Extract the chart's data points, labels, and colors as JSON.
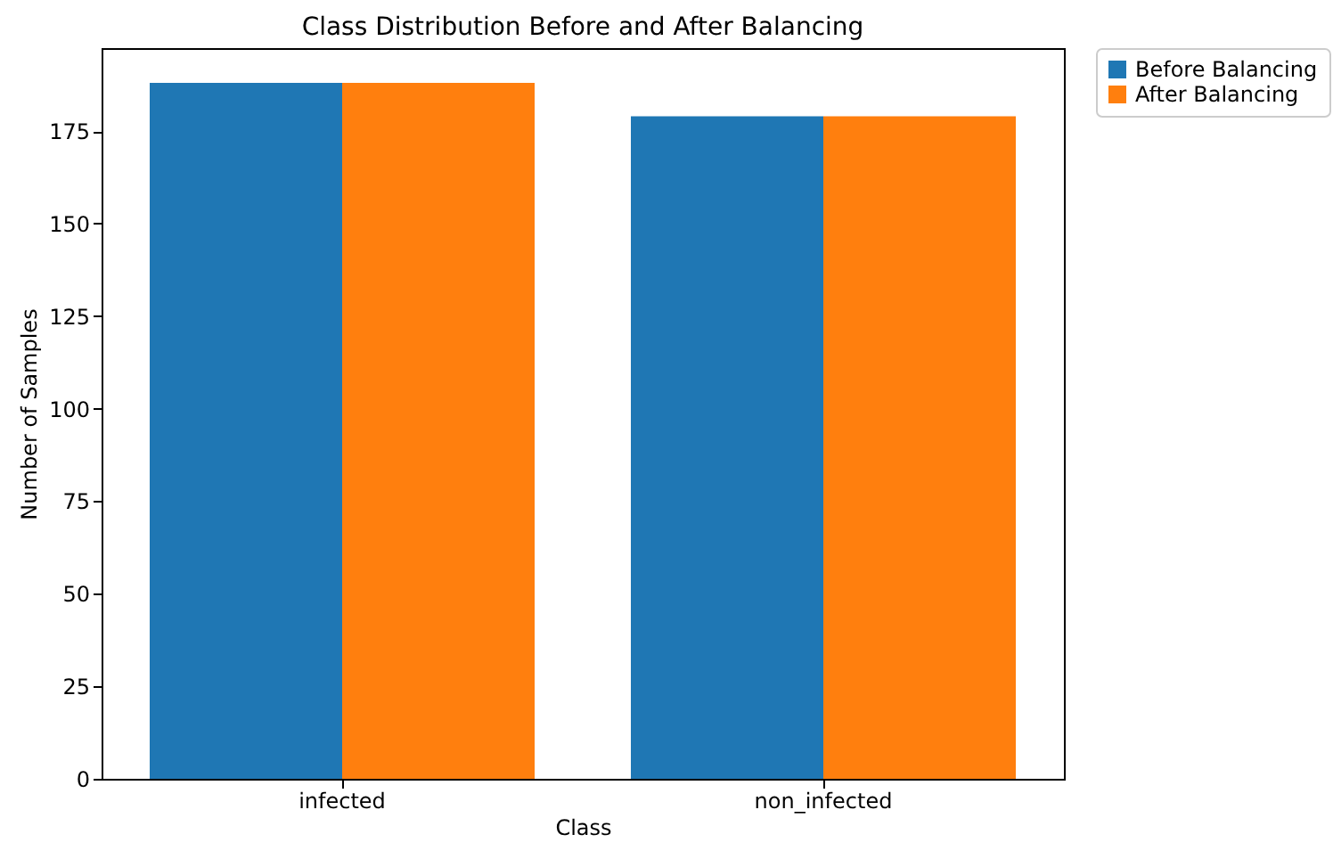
{
  "chart_data": {
    "type": "bar",
    "title": "Class Distribution Before and After Balancing",
    "xlabel": "Class",
    "ylabel": "Number of Samples",
    "categories": [
      "infected",
      "non_infected"
    ],
    "series": [
      {
        "name": "Before Balancing",
        "color": "#1f77b4",
        "values": [
          188,
          179
        ]
      },
      {
        "name": "After Balancing",
        "color": "#ff7f0e",
        "values": [
          188,
          179
        ]
      }
    ],
    "ylim": [
      0,
      197.4
    ],
    "yticks": [
      0,
      25,
      50,
      75,
      100,
      125,
      150,
      175
    ],
    "grid": false,
    "legend": "right"
  }
}
